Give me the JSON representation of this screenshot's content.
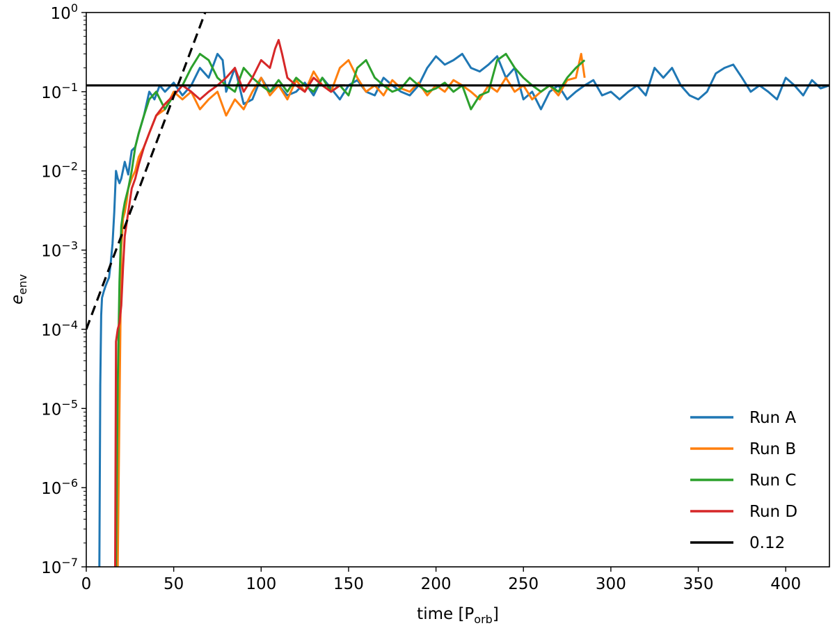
{
  "chart_data": {
    "type": "line",
    "title": "",
    "xlabel": "time [P",
    "xlabel_sub": "orb",
    "xlabel_end": "]",
    "ylabel": "e",
    "ylabel_sub": "env",
    "xlim": [
      0,
      425
    ],
    "ylim": [
      1e-07,
      1
    ],
    "yscale": "log",
    "x_ticks": [
      0,
      50,
      100,
      150,
      200,
      250,
      300,
      350,
      400
    ],
    "x_tick_labels": [
      "0",
      "50",
      "100",
      "150",
      "200",
      "250",
      "300",
      "350",
      "400"
    ],
    "y_ticks": [
      1e-07,
      1e-06,
      1e-05,
      0.0001,
      0.001,
      0.01,
      0.1,
      1
    ],
    "y_tick_labels": [
      {
        "base": "10",
        "exp": "−7"
      },
      {
        "base": "10",
        "exp": "−6"
      },
      {
        "base": "10",
        "exp": "−5"
      },
      {
        "base": "10",
        "exp": "−4"
      },
      {
        "base": "10",
        "exp": "−3"
      },
      {
        "base": "10",
        "exp": "−2"
      },
      {
        "base": "10",
        "exp": "−1"
      },
      {
        "base": "10",
        "exp": "0"
      }
    ],
    "grid": false,
    "legend_position": "bottom-right",
    "series": [
      {
        "name": "Run A",
        "color": "#1f77b4",
        "x": [
          7.5,
          8,
          8.5,
          9,
          10,
          11,
          12,
          13,
          14,
          15,
          16,
          17,
          18,
          19,
          20,
          22,
          24,
          26,
          28,
          30,
          33,
          36,
          39,
          42,
          45,
          50,
          55,
          60,
          65,
          70,
          75,
          78,
          80,
          85,
          90,
          95,
          100,
          105,
          110,
          115,
          120,
          125,
          130,
          135,
          140,
          145,
          150,
          155,
          160,
          165,
          170,
          175,
          180,
          185,
          190,
          195,
          200,
          205,
          210,
          215,
          220,
          225,
          230,
          235,
          240,
          245,
          250,
          255,
          260,
          265,
          270,
          275,
          280,
          285,
          290,
          295,
          300,
          305,
          310,
          315,
          320,
          325,
          330,
          335,
          340,
          345,
          350,
          355,
          360,
          365,
          370,
          375,
          380,
          385,
          390,
          395,
          400,
          405,
          410,
          415,
          420,
          425
        ],
        "y": [
          1e-07,
          2e-05,
          0.00015,
          0.00025,
          0.0003,
          0.00035,
          0.0004,
          0.00045,
          0.0007,
          0.0012,
          0.003,
          0.01,
          0.008,
          0.007,
          0.008,
          0.013,
          0.009,
          0.018,
          0.02,
          0.03,
          0.05,
          0.1,
          0.08,
          0.12,
          0.1,
          0.13,
          0.09,
          0.12,
          0.2,
          0.15,
          0.3,
          0.25,
          0.1,
          0.2,
          0.07,
          0.08,
          0.15,
          0.1,
          0.12,
          0.09,
          0.1,
          0.13,
          0.09,
          0.15,
          0.11,
          0.08,
          0.12,
          0.14,
          0.1,
          0.09,
          0.15,
          0.12,
          0.1,
          0.09,
          0.12,
          0.2,
          0.28,
          0.22,
          0.25,
          0.3,
          0.2,
          0.18,
          0.22,
          0.28,
          0.15,
          0.2,
          0.08,
          0.1,
          0.06,
          0.1,
          0.12,
          0.08,
          0.1,
          0.12,
          0.14,
          0.09,
          0.1,
          0.08,
          0.1,
          0.12,
          0.09,
          0.2,
          0.15,
          0.2,
          0.12,
          0.09,
          0.08,
          0.1,
          0.17,
          0.2,
          0.22,
          0.15,
          0.1,
          0.12,
          0.1,
          0.08,
          0.15,
          0.12,
          0.09,
          0.14,
          0.11,
          0.12
        ]
      },
      {
        "name": "Run B",
        "color": "#ff7f0e",
        "x": [
          17.5,
          18,
          19,
          20,
          21,
          22,
          23,
          24,
          26,
          28,
          30,
          33,
          36,
          40,
          45,
          50,
          55,
          60,
          65,
          70,
          75,
          80,
          85,
          90,
          95,
          100,
          105,
          110,
          115,
          120,
          125,
          130,
          135,
          140,
          145,
          150,
          155,
          160,
          165,
          170,
          175,
          180,
          185,
          190,
          195,
          200,
          205,
          210,
          215,
          220,
          225,
          230,
          235,
          240,
          245,
          250,
          255,
          260,
          265,
          270,
          275,
          280,
          283,
          285
        ],
        "y": [
          1e-07,
          1e-07,
          1e-05,
          0.001,
          0.0025,
          0.003,
          0.004,
          0.006,
          0.008,
          0.01,
          0.015,
          0.02,
          0.03,
          0.05,
          0.06,
          0.1,
          0.08,
          0.1,
          0.06,
          0.08,
          0.1,
          0.05,
          0.08,
          0.06,
          0.1,
          0.15,
          0.09,
          0.12,
          0.08,
          0.14,
          0.1,
          0.18,
          0.12,
          0.1,
          0.2,
          0.25,
          0.15,
          0.1,
          0.12,
          0.09,
          0.14,
          0.11,
          0.1,
          0.13,
          0.09,
          0.12,
          0.1,
          0.14,
          0.12,
          0.1,
          0.08,
          0.12,
          0.1,
          0.15,
          0.1,
          0.12,
          0.08,
          0.1,
          0.12,
          0.09,
          0.14,
          0.15,
          0.3,
          0.15
        ]
      },
      {
        "name": "Run C",
        "color": "#2ca02c",
        "x": [
          16.5,
          17,
          18,
          19,
          20,
          21,
          22,
          24,
          26,
          28,
          30,
          33,
          36,
          40,
          45,
          50,
          55,
          60,
          65,
          70,
          75,
          80,
          85,
          90,
          95,
          100,
          105,
          110,
          115,
          120,
          125,
          130,
          135,
          140,
          145,
          150,
          155,
          160,
          165,
          170,
          175,
          180,
          185,
          190,
          195,
          200,
          205,
          210,
          215,
          220,
          225,
          230,
          235,
          240,
          245,
          250,
          255,
          260,
          265,
          270,
          275,
          280,
          285
        ],
        "y": [
          1e-07,
          1e-07,
          2e-05,
          0.0004,
          0.002,
          0.003,
          0.004,
          0.006,
          0.01,
          0.02,
          0.03,
          0.05,
          0.08,
          0.1,
          0.06,
          0.09,
          0.12,
          0.2,
          0.3,
          0.25,
          0.15,
          0.12,
          0.1,
          0.2,
          0.15,
          0.12,
          0.1,
          0.14,
          0.1,
          0.15,
          0.12,
          0.1,
          0.15,
          0.1,
          0.12,
          0.09,
          0.2,
          0.25,
          0.15,
          0.12,
          0.1,
          0.11,
          0.15,
          0.12,
          0.1,
          0.11,
          0.13,
          0.1,
          0.12,
          0.06,
          0.09,
          0.1,
          0.25,
          0.3,
          0.2,
          0.15,
          0.12,
          0.1,
          0.12,
          0.1,
          0.15,
          0.2,
          0.25
        ]
      },
      {
        "name": "Run D",
        "color": "#d62728",
        "x": [
          16.5,
          17,
          18,
          19,
          20,
          21,
          22,
          24,
          26,
          28,
          30,
          33,
          36,
          40,
          45,
          50,
          55,
          60,
          65,
          70,
          75,
          80,
          85,
          90,
          95,
          100,
          105,
          108,
          110,
          112,
          115,
          120,
          125,
          130,
          135,
          140,
          145,
          148
        ],
        "y": [
          1e-07,
          7e-05,
          0.0001,
          0.00012,
          0.0002,
          0.0006,
          0.0015,
          0.003,
          0.006,
          0.008,
          0.012,
          0.02,
          0.03,
          0.05,
          0.07,
          0.09,
          0.12,
          0.1,
          0.08,
          0.1,
          0.12,
          0.15,
          0.2,
          0.1,
          0.15,
          0.25,
          0.2,
          0.35,
          0.45,
          0.3,
          0.15,
          0.12,
          0.1,
          0.15,
          0.12,
          0.1,
          0.12,
          0.12
        ]
      },
      {
        "name": "",
        "color": "#000000",
        "style": "dashed",
        "x": [
          0,
          68
        ],
        "y": [
          0.0001,
          1
        ]
      },
      {
        "name": "0.12",
        "color": "#000000",
        "style": "solid",
        "x": [
          0,
          425
        ],
        "y": [
          0.12,
          0.12
        ]
      }
    ]
  }
}
